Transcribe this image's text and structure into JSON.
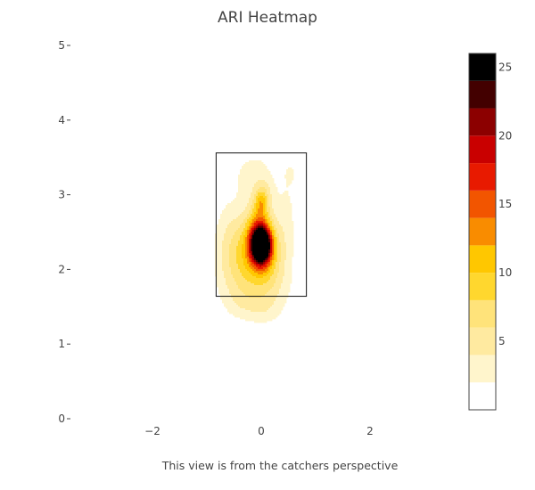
{
  "chart_data": {
    "type": "heatmap",
    "subtype": "filled-contour",
    "title": "ARI Heatmap",
    "xlabel": "This view is from the catchers perspective",
    "ylabel": "",
    "xlim": [
      -3.5,
      3.2
    ],
    "ylim": [
      0,
      5
    ],
    "x_ticks": [
      -2,
      0,
      2
    ],
    "x_tick_labels": [
      "−2",
      "0",
      "2"
    ],
    "y_ticks": [
      0,
      1,
      2,
      3,
      4,
      5
    ],
    "y_tick_labels": [
      "0",
      "1",
      "2",
      "3",
      "4",
      "5"
    ],
    "grid": false,
    "strike_zone": {
      "x": [
        -0.83,
        0.83
      ],
      "y": [
        1.64,
        3.56
      ]
    },
    "colorbar": {
      "min": 0,
      "max": 25,
      "ticks": [
        5,
        10,
        15,
        20,
        25
      ],
      "tick_labels": [
        "5",
        "10",
        "15",
        "20",
        "25"
      ],
      "levels": [
        {
          "from": 0,
          "to": 2,
          "color": "#ffffff"
        },
        {
          "from": 2,
          "to": 4,
          "color": "#fff5cc"
        },
        {
          "from": 4,
          "to": 6,
          "color": "#ffeaa0"
        },
        {
          "from": 6,
          "to": 8,
          "color": "#ffe37a"
        },
        {
          "from": 8,
          "to": 10,
          "color": "#ffd72e"
        },
        {
          "from": 10,
          "to": 12,
          "color": "#ffc700"
        },
        {
          "from": 12,
          "to": 14,
          "color": "#f98c00"
        },
        {
          "from": 14,
          "to": 16,
          "color": "#f25500"
        },
        {
          "from": 16,
          "to": 18,
          "color": "#e81a00"
        },
        {
          "from": 18,
          "to": 20,
          "color": "#c90000"
        },
        {
          "from": 20,
          "to": 22,
          "color": "#8c0000"
        },
        {
          "from": 22,
          "to": 24,
          "color": "#430000"
        },
        {
          "from": 24,
          "to": 26,
          "color": "#000000"
        }
      ]
    },
    "density_components": [
      {
        "x": 0.0,
        "y": 2.32,
        "sx": 0.13,
        "sy": 0.17,
        "w": 28.0
      },
      {
        "x": -0.05,
        "y": 2.55,
        "sx": 0.14,
        "sy": 0.26,
        "w": 7.0
      },
      {
        "x": 0.0,
        "y": 2.9,
        "sx": 0.08,
        "sy": 0.12,
        "w": 5.0
      },
      {
        "x": -0.22,
        "y": 2.25,
        "sx": 0.24,
        "sy": 0.35,
        "w": 6.0
      },
      {
        "x": 0.15,
        "y": 2.2,
        "sx": 0.22,
        "sy": 0.38,
        "w": 6.0
      },
      {
        "x": -0.45,
        "y": 2.15,
        "sx": 0.28,
        "sy": 0.45,
        "w": 3.0
      },
      {
        "x": 0.05,
        "y": 3.05,
        "sx": 0.15,
        "sy": 0.2,
        "w": 3.5
      },
      {
        "x": 0.48,
        "y": 2.75,
        "sx": 0.13,
        "sy": 0.48,
        "w": 2.0
      },
      {
        "x": -0.3,
        "y": 3.2,
        "sx": 0.18,
        "sy": 0.18,
        "w": 1.8
      },
      {
        "x": 0.55,
        "y": 3.3,
        "sx": 0.1,
        "sy": 0.12,
        "w": 1.4
      },
      {
        "x": -0.65,
        "y": 2.35,
        "sx": 0.18,
        "sy": 0.5,
        "w": 1.6
      },
      {
        "x": 0.0,
        "y": 1.75,
        "sx": 0.4,
        "sy": 0.28,
        "w": 2.5
      },
      {
        "x": -0.1,
        "y": 3.45,
        "sx": 0.25,
        "sy": 0.14,
        "w": 1.4
      },
      {
        "x": 0.05,
        "y": 1.45,
        "sx": 0.22,
        "sy": 0.14,
        "w": 1.5
      },
      {
        "x": -0.35,
        "y": 1.55,
        "sx": 0.2,
        "sy": 0.15,
        "w": 1.2
      }
    ]
  }
}
